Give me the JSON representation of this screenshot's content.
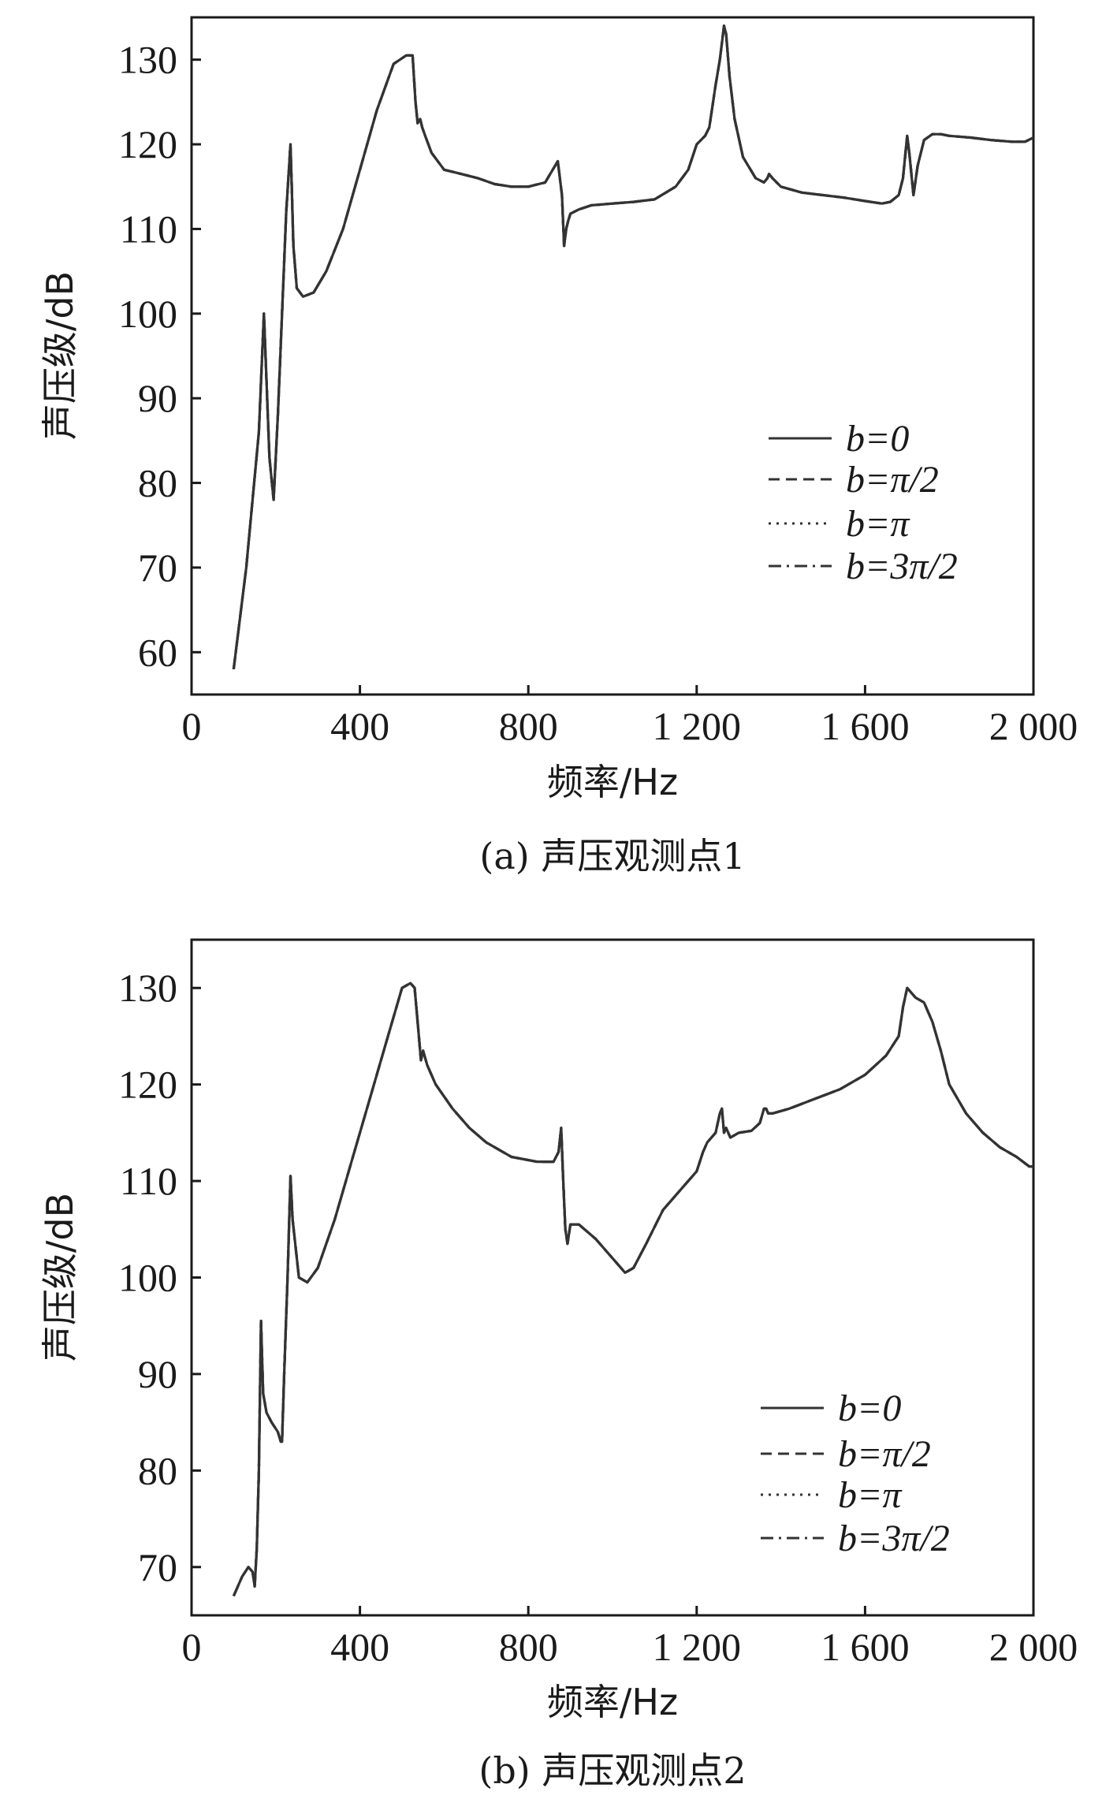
{
  "chart_data": [
    {
      "type": "line",
      "caption": "(a) 声压观测点1",
      "xlabel": "频率/Hz",
      "ylabel": "声压级/dB",
      "xlim": [
        0,
        2000
      ],
      "ylim": [
        55,
        135
      ],
      "xticks": [
        0,
        400,
        800,
        1200,
        1600,
        2000
      ],
      "xtick_labels": [
        "0",
        "400",
        "800",
        "1 200",
        "1 600",
        "2 000"
      ],
      "yticks": [
        60,
        70,
        80,
        90,
        100,
        110,
        120,
        130
      ],
      "ytick_labels": [
        "60",
        "70",
        "80",
        "90",
        "100",
        "110",
        "120",
        "130"
      ],
      "grid": false,
      "legend_position": "center-right",
      "series": [
        {
          "name": "b=0",
          "style": "solid"
        },
        {
          "name": "b=π/2",
          "style": "dashed"
        },
        {
          "name": "b=π",
          "style": "dotted"
        },
        {
          "name": "b=3π/2",
          "style": "dashdot"
        }
      ],
      "x": [
        100,
        130,
        160,
        172,
        178,
        185,
        195,
        205,
        215,
        225,
        235,
        238,
        242,
        250,
        265,
        290,
        320,
        360,
        400,
        440,
        480,
        510,
        525,
        532,
        537,
        543,
        548,
        555,
        570,
        600,
        640,
        680,
        720,
        760,
        800,
        840,
        870,
        880,
        885,
        890,
        895,
        900,
        920,
        950,
        1000,
        1050,
        1100,
        1150,
        1180,
        1200,
        1220,
        1230,
        1245,
        1255,
        1265,
        1270,
        1278,
        1290,
        1310,
        1340,
        1360,
        1368,
        1372,
        1380,
        1400,
        1450,
        1500,
        1550,
        1600,
        1640,
        1660,
        1680,
        1690,
        1700,
        1705,
        1715,
        1725,
        1740,
        1760,
        1780,
        1800,
        1850,
        1900,
        1950,
        1980,
        2000
      ],
      "values": [
        58,
        70,
        86,
        100,
        92,
        83,
        78,
        88,
        100,
        112,
        120,
        115,
        108,
        103,
        102,
        102.5,
        105,
        110,
        117,
        124,
        129.5,
        130.5,
        130.5,
        125,
        122.5,
        123,
        122,
        121,
        119,
        117,
        116.5,
        116,
        115.3,
        115,
        115,
        115.5,
        118,
        114,
        108,
        110,
        111,
        111.8,
        112.3,
        112.8,
        113,
        113.2,
        113.5,
        115,
        117,
        120,
        121,
        122,
        127,
        130,
        134,
        133,
        128,
        123,
        118.5,
        116,
        115.5,
        116,
        116.5,
        116,
        115,
        114.3,
        114,
        113.7,
        113.3,
        113,
        113.2,
        114,
        116,
        121,
        119,
        114,
        117.5,
        120.5,
        121.2,
        121.2,
        121,
        120.8,
        120.5,
        120.3,
        120.3,
        120.8
      ]
    },
    {
      "type": "line",
      "caption": "(b) 声压观测点2",
      "xlabel": "频率/Hz",
      "ylabel": "声压级/dB",
      "xlim": [
        0,
        2000
      ],
      "ylim": [
        65,
        135
      ],
      "xticks": [
        0,
        400,
        800,
        1200,
        1600,
        2000
      ],
      "xtick_labels": [
        "0",
        "400",
        "800",
        "1 200",
        "1 600",
        "2 000"
      ],
      "yticks": [
        70,
        80,
        90,
        100,
        110,
        120,
        130
      ],
      "ytick_labels": [
        "70",
        "80",
        "90",
        "100",
        "110",
        "120",
        "130"
      ],
      "grid": false,
      "legend_position": "lower-right",
      "series": [
        {
          "name": "b=0",
          "style": "solid"
        },
        {
          "name": "b=π/2",
          "style": "dashed"
        },
        {
          "name": "b=π",
          "style": "dotted"
        },
        {
          "name": "b=3π/2",
          "style": "dashdot"
        }
      ],
      "x": [
        100,
        120,
        135,
        145,
        150,
        155,
        160,
        165,
        170,
        178,
        190,
        205,
        212,
        215,
        220,
        228,
        235,
        240,
        255,
        275,
        300,
        340,
        380,
        420,
        460,
        500,
        520,
        530,
        538,
        545,
        550,
        560,
        580,
        620,
        660,
        700,
        760,
        820,
        860,
        872,
        878,
        883,
        888,
        893,
        900,
        920,
        960,
        1000,
        1030,
        1050,
        1080,
        1120,
        1160,
        1200,
        1215,
        1225,
        1235,
        1245,
        1255,
        1260,
        1265,
        1270,
        1280,
        1300,
        1330,
        1350,
        1360,
        1365,
        1370,
        1380,
        1420,
        1480,
        1540,
        1600,
        1650,
        1680,
        1690,
        1700,
        1710,
        1720,
        1740,
        1760,
        1780,
        1800,
        1840,
        1880,
        1920,
        1960,
        1990,
        2000
      ],
      "values": [
        67,
        69,
        70,
        69.5,
        68,
        72,
        80,
        95.5,
        88,
        86,
        85,
        84,
        83,
        83,
        90,
        100,
        110.5,
        106,
        100,
        99.5,
        101,
        106,
        112,
        118,
        124,
        130,
        130.5,
        130,
        126,
        122.5,
        123.5,
        122,
        120,
        117.5,
        115.5,
        114,
        112.5,
        112,
        112,
        113,
        115.5,
        110,
        105,
        103.5,
        105.5,
        105.5,
        104,
        102,
        100.5,
        101,
        103.5,
        107,
        109,
        111,
        113,
        114,
        114.5,
        115,
        117,
        117.5,
        115,
        115.5,
        114.5,
        115,
        115.2,
        116,
        117.5,
        117.5,
        117,
        117,
        117.5,
        118.5,
        119.5,
        121,
        123,
        125,
        128,
        130,
        129.5,
        129,
        128.5,
        126.5,
        123.5,
        120,
        117,
        115,
        113.5,
        112.5,
        111.5,
        111.5
      ]
    }
  ]
}
